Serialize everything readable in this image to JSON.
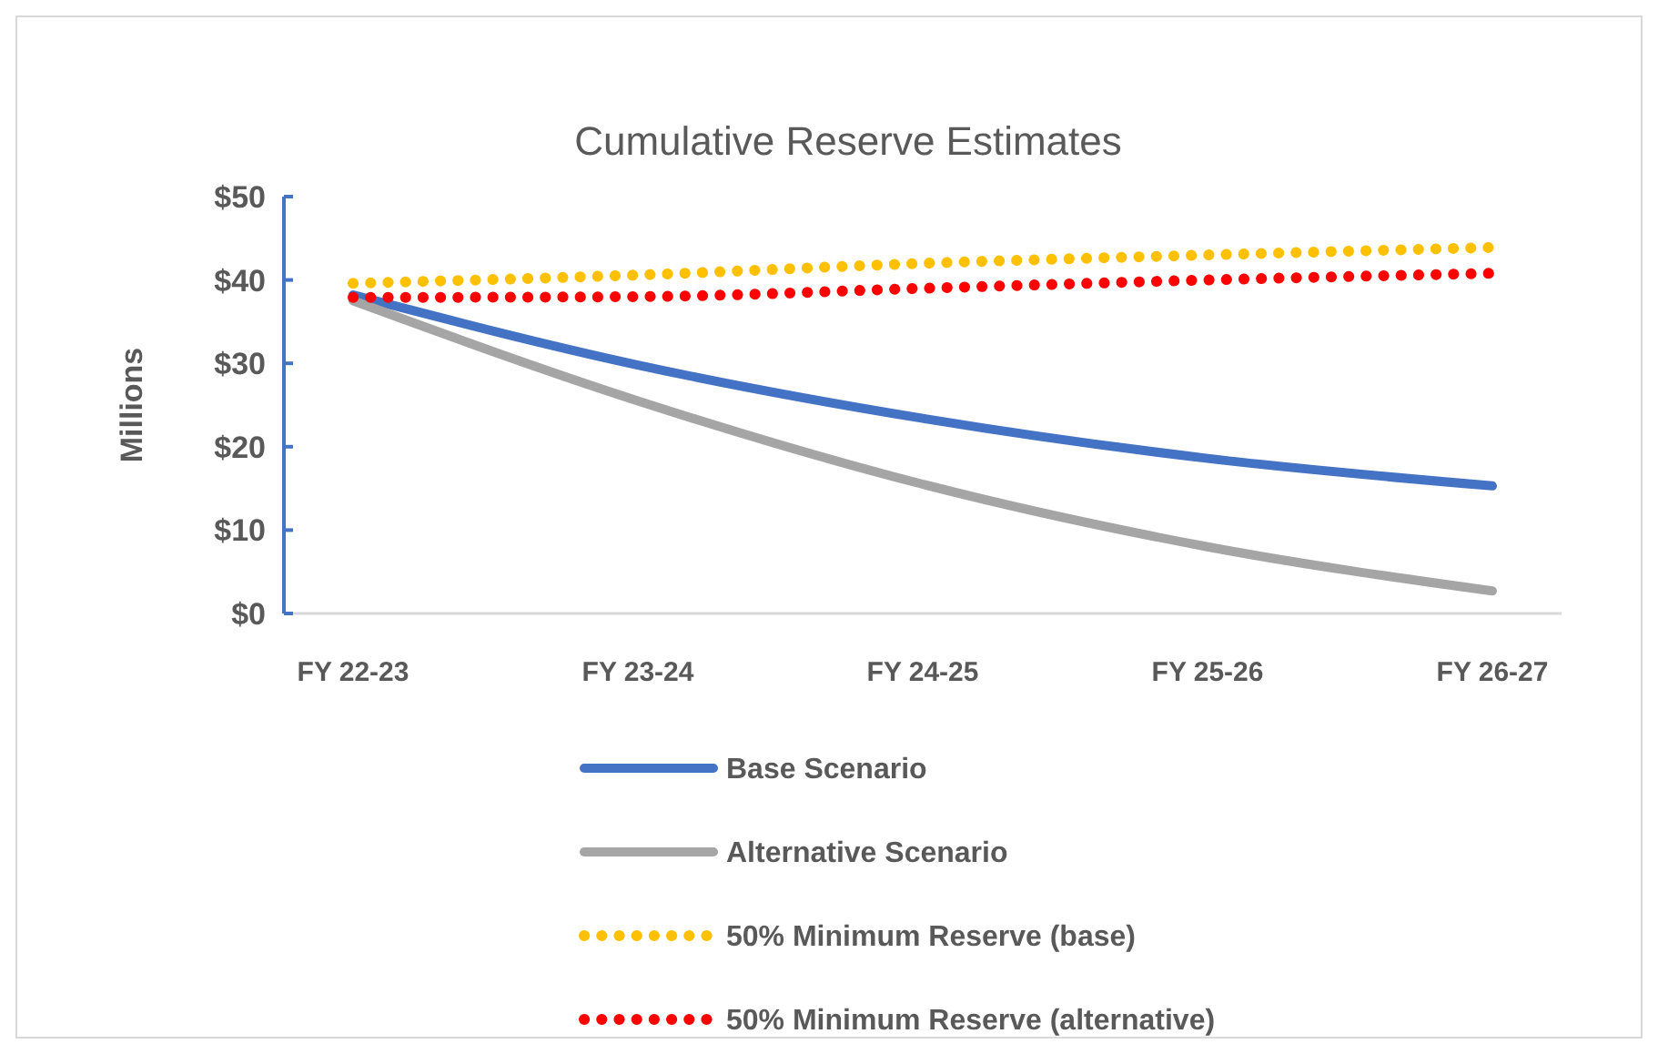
{
  "chart_data": {
    "type": "line",
    "title": "Cumulative Reserve Estimates",
    "ylabel": "Millions",
    "categories": [
      "FY 22-23",
      "FY 23-24",
      "FY 24-25",
      "FY 25-26",
      "FY 26-27"
    ],
    "series": [
      {
        "name": "Base Scenario",
        "color": "#4472c4",
        "values": [
          38.2,
          29.8,
          23.4,
          18.6,
          15.3
        ]
      },
      {
        "name": "Alternative Scenario",
        "color": "#a5a5a5",
        "values": [
          37.5,
          25.5,
          15.5,
          8,
          2.7
        ]
      },
      {
        "name": "50% Minimum Reserve (base)",
        "color": "#ffc000",
        "line_style": "dotted",
        "values": [
          39.6,
          40.6,
          42,
          43,
          43.9
        ]
      },
      {
        "name": "50% Minimum Reserve (alternative)",
        "color": "#ff0000",
        "line_style": "dotted",
        "values": [
          37.9,
          38,
          39,
          40,
          40.8
        ]
      }
    ],
    "ylim": [
      0,
      50
    ],
    "yticks": [
      {
        "value": 0,
        "label": "$0"
      },
      {
        "value": 10,
        "label": "$10"
      },
      {
        "value": 20,
        "label": "$20"
      },
      {
        "value": 30,
        "label": "$30"
      },
      {
        "value": 40,
        "label": "$40"
      },
      {
        "value": 50,
        "label": "$50"
      }
    ],
    "grid": false,
    "legend": "bottom",
    "marker": "none"
  }
}
